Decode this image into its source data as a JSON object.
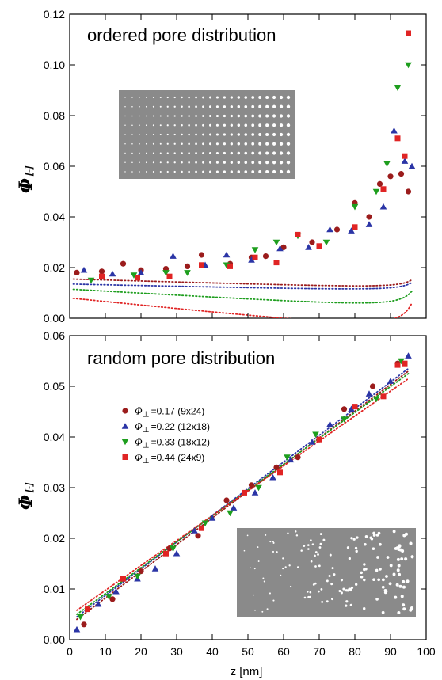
{
  "colors": {
    "series": [
      "#9b1c1c",
      "#2b35a6",
      "#1e9e1e",
      "#e02424"
    ],
    "inset_bg": "#8a8a8a",
    "inset_dot": "#ffffff"
  },
  "x_axis": {
    "label": "z [nm]",
    "ticks": [
      "0",
      "10",
      "20",
      "30",
      "40",
      "50",
      "60",
      "70",
      "80",
      "90",
      "100"
    ]
  },
  "legend": {
    "symbol": "Φ",
    "entries": [
      "=0.17 (9x24)",
      "=0.22 (12x18)",
      "=0.33 (18x12)",
      "=0.44 (24x9)"
    ]
  },
  "chart_data": [
    {
      "type": "scatter",
      "title": "ordered pore distribution",
      "ylabel": "Φ",
      "ylabel_unit": "[-]",
      "xlabel": "",
      "xlim": [
        0,
        100
      ],
      "ylim": [
        0,
        0.12
      ],
      "yticks": [
        "0.00",
        "0.02",
        "0.04",
        "0.06",
        "0.08",
        "0.10",
        "0.12"
      ],
      "inset": "ordered",
      "series": [
        {
          "marker": "circle",
          "x": [
            2,
            9,
            15,
            20,
            27,
            33,
            37,
            45,
            51,
            55,
            60,
            68,
            75,
            80,
            84,
            87,
            90,
            93,
            95
          ],
          "y": [
            0.018,
            0.0185,
            0.0215,
            0.019,
            0.0195,
            0.0205,
            0.025,
            0.0215,
            0.024,
            0.0245,
            0.028,
            0.03,
            0.035,
            0.0455,
            0.04,
            0.053,
            0.056,
            0.057,
            0.05
          ]
        },
        {
          "marker": "triangle-up",
          "x": [
            4,
            12,
            20,
            29,
            38,
            44,
            51,
            59,
            67,
            73,
            79,
            84,
            88,
            91,
            94,
            96
          ],
          "y": [
            0.019,
            0.0175,
            0.018,
            0.0245,
            0.021,
            0.025,
            0.023,
            0.0275,
            0.028,
            0.035,
            0.0345,
            0.037,
            0.044,
            0.074,
            0.062,
            0.06
          ]
        },
        {
          "marker": "triangle-down",
          "x": [
            6,
            18,
            27,
            33,
            44,
            52,
            58,
            64,
            72,
            80,
            86,
            89,
            92,
            95
          ],
          "y": [
            0.015,
            0.017,
            0.018,
            0.018,
            0.021,
            0.027,
            0.03,
            0.0325,
            0.03,
            0.044,
            0.05,
            0.061,
            0.091,
            0.1
          ]
        },
        {
          "marker": "square",
          "x": [
            9,
            19,
            28,
            37,
            45,
            52,
            58,
            64,
            70,
            80,
            88,
            92,
            94,
            95
          ],
          "y": [
            0.0165,
            0.016,
            0.0165,
            0.021,
            0.0205,
            0.024,
            0.022,
            0.033,
            0.0285,
            0.036,
            0.051,
            0.071,
            0.064,
            0.1125
          ]
        }
      ],
      "fits": [
        {
          "a": 0.0155,
          "b": 0.0153,
          "c": 1.0,
          "d": -0.004
        },
        {
          "a": 0.0135,
          "b": 0.015,
          "c": 1.0,
          "d": -0.003
        },
        {
          "a": 0.0115,
          "b": 0.03,
          "c": 1.0,
          "d": -0.008
        },
        {
          "a": 0.008,
          "b": 0.05,
          "c": 1.0,
          "d": -0.014
        }
      ]
    },
    {
      "type": "scatter",
      "title": "random pore distribution",
      "ylabel": "Φ",
      "ylabel_unit": "[-]",
      "xlabel": "z [nm]",
      "xlim": [
        0,
        100
      ],
      "ylim": [
        0,
        0.06
      ],
      "yticks": [
        "0.00",
        "0.01",
        "0.02",
        "0.03",
        "0.04",
        "0.05",
        "0.06"
      ],
      "inset": "random",
      "series": [
        {
          "marker": "circle",
          "x": [
            4,
            12,
            20,
            28,
            36,
            44,
            51,
            58,
            64,
            70,
            77,
            85,
            92
          ],
          "y": [
            0.003,
            0.008,
            0.0135,
            0.018,
            0.0205,
            0.0275,
            0.0305,
            0.034,
            0.036,
            0.0395,
            0.0455,
            0.05,
            0.0545
          ]
        },
        {
          "marker": "triangle-up",
          "x": [
            2,
            8,
            13,
            19,
            24,
            30,
            35,
            40,
            46,
            52,
            57,
            62,
            68,
            73,
            79,
            84,
            90,
            95
          ],
          "y": [
            0.002,
            0.007,
            0.0095,
            0.012,
            0.014,
            0.017,
            0.0215,
            0.024,
            0.026,
            0.029,
            0.032,
            0.0355,
            0.039,
            0.0425,
            0.0455,
            0.0485,
            0.051,
            0.056
          ]
        },
        {
          "marker": "triangle-down",
          "x": [
            3,
            11,
            19,
            29,
            38,
            45,
            53,
            61,
            69,
            77,
            86,
            93
          ],
          "y": [
            0.0045,
            0.0085,
            0.0125,
            0.018,
            0.023,
            0.025,
            0.03,
            0.036,
            0.0405,
            0.0435,
            0.0475,
            0.055
          ]
        },
        {
          "marker": "square",
          "x": [
            5,
            15,
            27,
            37,
            49,
            59,
            70,
            80,
            88,
            92,
            94
          ],
          "y": [
            0.006,
            0.012,
            0.017,
            0.022,
            0.029,
            0.033,
            0.0395,
            0.046,
            0.048,
            0.0542,
            0.0545
          ]
        }
      ],
      "fits": [
        {
          "x0": 2,
          "y0": 0.004,
          "x1": 95,
          "y1": 0.053
        },
        {
          "x0": 2,
          "y0": 0.0045,
          "x1": 95,
          "y1": 0.0535
        },
        {
          "x0": 2,
          "y0": 0.005,
          "x1": 95,
          "y1": 0.0525
        },
        {
          "x0": 2,
          "y0": 0.0058,
          "x1": 95,
          "y1": 0.0515
        }
      ]
    }
  ]
}
